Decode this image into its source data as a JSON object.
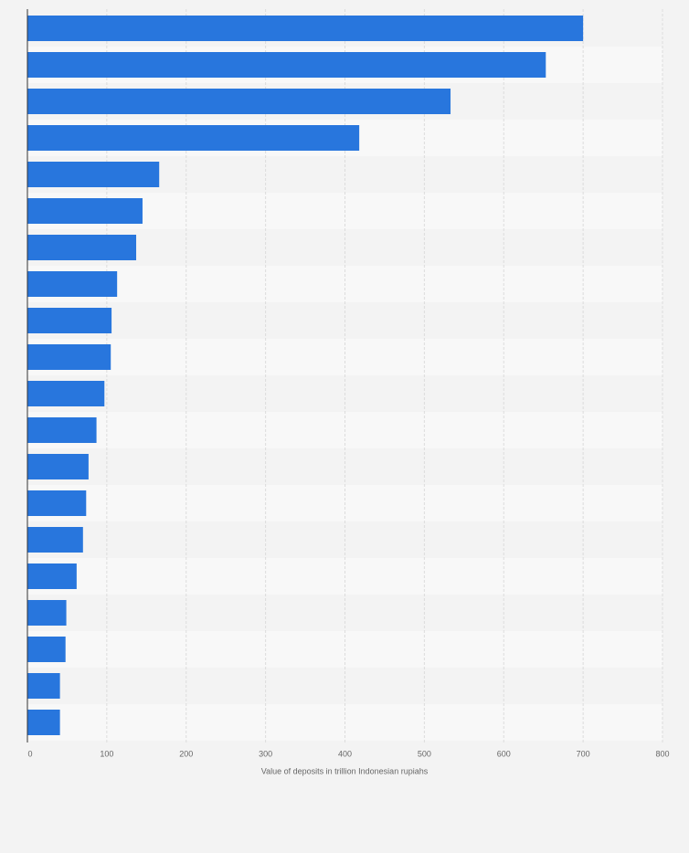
{
  "chart_data": {
    "type": "barh",
    "categories": [
      null,
      null,
      null,
      null,
      null,
      null,
      null,
      null,
      null,
      null,
      null,
      null,
      null,
      null,
      null,
      null,
      null,
      null,
      null,
      null
    ],
    "values": [
      700,
      653,
      533,
      418,
      166,
      145,
      137,
      113,
      106,
      105,
      97,
      87,
      77,
      74,
      70,
      62,
      49,
      48,
      41,
      41
    ],
    "color": "#2876dd",
    "x_label": "Value of deposits in trillion Indonesian rupiahs",
    "xlim": [
      0,
      800
    ],
    "xticks": [
      0,
      100,
      200,
      300,
      400,
      500,
      600,
      700,
      800
    ],
    "grid": true
  }
}
